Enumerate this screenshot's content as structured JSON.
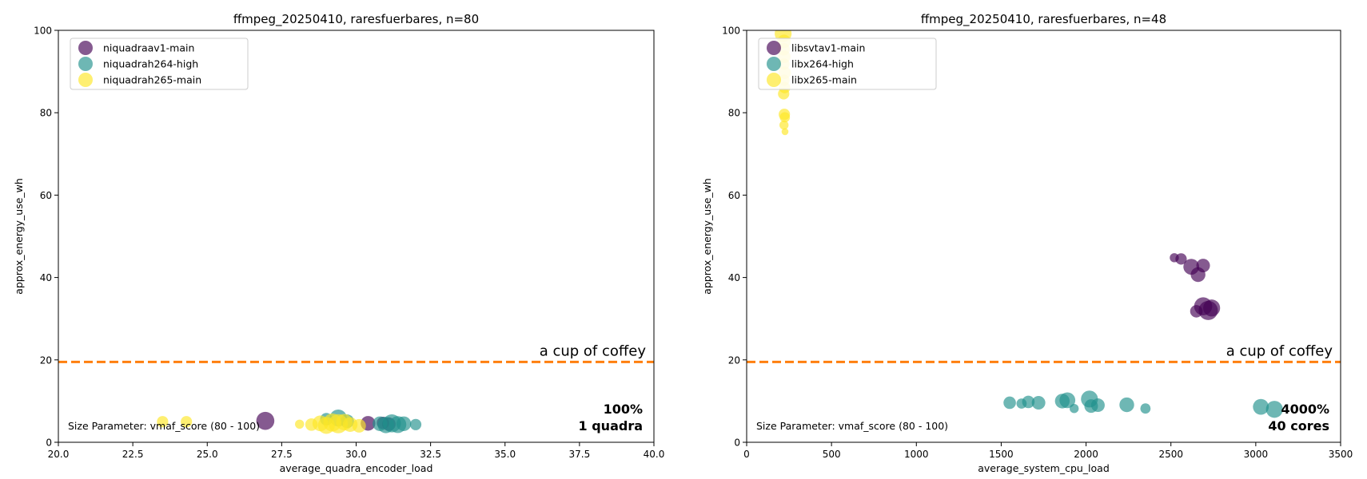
{
  "colors": {
    "av1": "#440154",
    "h264": "#21918c",
    "h265": "#fde725",
    "reference_line": "#ff7f0e",
    "corner_text": "#ff0000"
  },
  "chart_data": [
    {
      "type": "scatter",
      "title": "ffmpeg_20250410, raresfuerbares, n=80",
      "xlabel": "average_quadra_encoder_load",
      "ylabel": "approx_energy_use_wh",
      "xlim": [
        20.0,
        40.0
      ],
      "ylim": [
        0,
        100
      ],
      "xticks": [
        "20.0",
        "22.5",
        "25.0",
        "27.5",
        "30.0",
        "32.5",
        "35.0",
        "37.5",
        "40.0"
      ],
      "xtick_values": [
        20.0,
        22.5,
        25.0,
        27.5,
        30.0,
        32.5,
        35.0,
        37.5,
        40.0
      ],
      "yticks": [
        "0",
        "20",
        "40",
        "60",
        "80",
        "100"
      ],
      "ytick_values": [
        0,
        20,
        40,
        60,
        80,
        100
      ],
      "grid": false,
      "legend_position": "top-left",
      "reference_line": {
        "y": 19.5,
        "label": "a cup of coffey",
        "style": "dashed"
      },
      "size_note": "Size Parameter: vmaf_score (80 - 100)",
      "corner_text": [
        "100%",
        "1 quadra"
      ],
      "series": [
        {
          "name": "niquadraav1-main",
          "color_key": "av1",
          "points": [
            {
              "x": 26.95,
              "y": 5.2,
              "s": 98
            },
            {
              "x": 30.4,
              "y": 4.6,
              "s": 92
            },
            {
              "x": 31.1,
              "y": 4.4,
              "s": 90
            },
            {
              "x": 30.9,
              "y": 4.7,
              "s": 88
            }
          ]
        },
        {
          "name": "niquadrah264-high",
          "color_key": "h264",
          "points": [
            {
              "x": 29.0,
              "y": 5.6,
              "s": 88
            },
            {
              "x": 29.4,
              "y": 5.9,
              "s": 96
            },
            {
              "x": 29.7,
              "y": 5.1,
              "s": 90
            },
            {
              "x": 30.8,
              "y": 4.5,
              "s": 92
            },
            {
              "x": 31.0,
              "y": 4.2,
              "s": 95
            },
            {
              "x": 31.2,
              "y": 4.6,
              "s": 98
            },
            {
              "x": 31.4,
              "y": 4.3,
              "s": 96
            },
            {
              "x": 31.6,
              "y": 4.5,
              "s": 92
            },
            {
              "x": 32.0,
              "y": 4.3,
              "s": 86
            }
          ]
        },
        {
          "name": "niquadrah265-main",
          "color_key": "h265",
          "points": [
            {
              "x": 23.5,
              "y": 5.0,
              "s": 86
            },
            {
              "x": 24.3,
              "y": 5.0,
              "s": 86
            },
            {
              "x": 28.1,
              "y": 4.4,
              "s": 82
            },
            {
              "x": 28.5,
              "y": 4.3,
              "s": 88
            },
            {
              "x": 28.8,
              "y": 4.6,
              "s": 94
            },
            {
              "x": 29.0,
              "y": 4.1,
              "s": 96
            },
            {
              "x": 29.2,
              "y": 4.8,
              "s": 98
            },
            {
              "x": 29.4,
              "y": 4.5,
              "s": 100
            },
            {
              "x": 29.6,
              "y": 4.9,
              "s": 95
            },
            {
              "x": 29.8,
              "y": 4.3,
              "s": 92
            },
            {
              "x": 30.1,
              "y": 4.0,
              "s": 90
            }
          ]
        }
      ]
    },
    {
      "type": "scatter",
      "title": "ffmpeg_20250410, raresfuerbares, n=48",
      "xlabel": "average_system_cpu_load",
      "ylabel": "approx_energy_use_wh",
      "xlim": [
        0,
        3500
      ],
      "ylim": [
        0,
        100
      ],
      "xticks": [
        "0",
        "500",
        "1000",
        "1500",
        "2000",
        "2500",
        "3000",
        "3500"
      ],
      "xtick_values": [
        0,
        500,
        1000,
        1500,
        2000,
        2500,
        3000,
        3500
      ],
      "yticks": [
        "0",
        "20",
        "40",
        "60",
        "80",
        "100"
      ],
      "ytick_values": [
        0,
        20,
        40,
        60,
        80,
        100
      ],
      "grid": false,
      "legend_position": "top-left",
      "reference_line": {
        "y": 19.5,
        "label": "a cup of coffey",
        "style": "dashed"
      },
      "size_note": "Size Parameter: vmaf_score (80 - 100)",
      "corner_text": [
        "4000%",
        "40 cores"
      ],
      "series": [
        {
          "name": "libsvtav1-main",
          "color_key": "av1",
          "points": [
            {
              "x": 2520,
              "y": 44.8,
              "s": 82
            },
            {
              "x": 2560,
              "y": 44.5,
              "s": 86
            },
            {
              "x": 2620,
              "y": 42.6,
              "s": 94
            },
            {
              "x": 2660,
              "y": 40.7,
              "s": 92
            },
            {
              "x": 2690,
              "y": 42.9,
              "s": 90
            },
            {
              "x": 2650,
              "y": 31.8,
              "s": 88
            },
            {
              "x": 2690,
              "y": 33.0,
              "s": 98
            },
            {
              "x": 2720,
              "y": 32.0,
              "s": 100
            },
            {
              "x": 2740,
              "y": 32.6,
              "s": 96
            }
          ]
        },
        {
          "name": "libx264-high",
          "color_key": "h264",
          "points": [
            {
              "x": 1550,
              "y": 9.6,
              "s": 88
            },
            {
              "x": 1620,
              "y": 9.4,
              "s": 84
            },
            {
              "x": 1660,
              "y": 9.8,
              "s": 88
            },
            {
              "x": 1720,
              "y": 9.6,
              "s": 90
            },
            {
              "x": 1860,
              "y": 10.0,
              "s": 92
            },
            {
              "x": 1890,
              "y": 10.2,
              "s": 94
            },
            {
              "x": 1930,
              "y": 8.2,
              "s": 82
            },
            {
              "x": 2020,
              "y": 10.5,
              "s": 96
            },
            {
              "x": 2030,
              "y": 8.8,
              "s": 90
            },
            {
              "x": 2070,
              "y": 9.0,
              "s": 90
            },
            {
              "x": 2240,
              "y": 9.1,
              "s": 92
            },
            {
              "x": 2350,
              "y": 8.2,
              "s": 84
            },
            {
              "x": 3030,
              "y": 8.6,
              "s": 94
            },
            {
              "x": 3110,
              "y": 8.0,
              "s": 96
            }
          ]
        },
        {
          "name": "libx265-main",
          "color_key": "h265",
          "points": [
            {
              "x": 215,
              "y": 99.2,
              "s": 96
            },
            {
              "x": 220,
              "y": 97.3,
              "s": 90
            },
            {
              "x": 218,
              "y": 95.4,
              "s": 88
            },
            {
              "x": 222,
              "y": 93.6,
              "s": 88
            },
            {
              "x": 220,
              "y": 91.8,
              "s": 86
            },
            {
              "x": 224,
              "y": 89.7,
              "s": 88
            },
            {
              "x": 220,
              "y": 87.9,
              "s": 86
            },
            {
              "x": 224,
              "y": 86.1,
              "s": 86
            },
            {
              "x": 218,
              "y": 84.6,
              "s": 86
            },
            {
              "x": 222,
              "y": 79.6,
              "s": 86
            },
            {
              "x": 225,
              "y": 78.9,
              "s": 84
            },
            {
              "x": 220,
              "y": 77.0,
              "s": 82
            },
            {
              "x": 226,
              "y": 75.4,
              "s": 78
            }
          ]
        }
      ]
    }
  ]
}
